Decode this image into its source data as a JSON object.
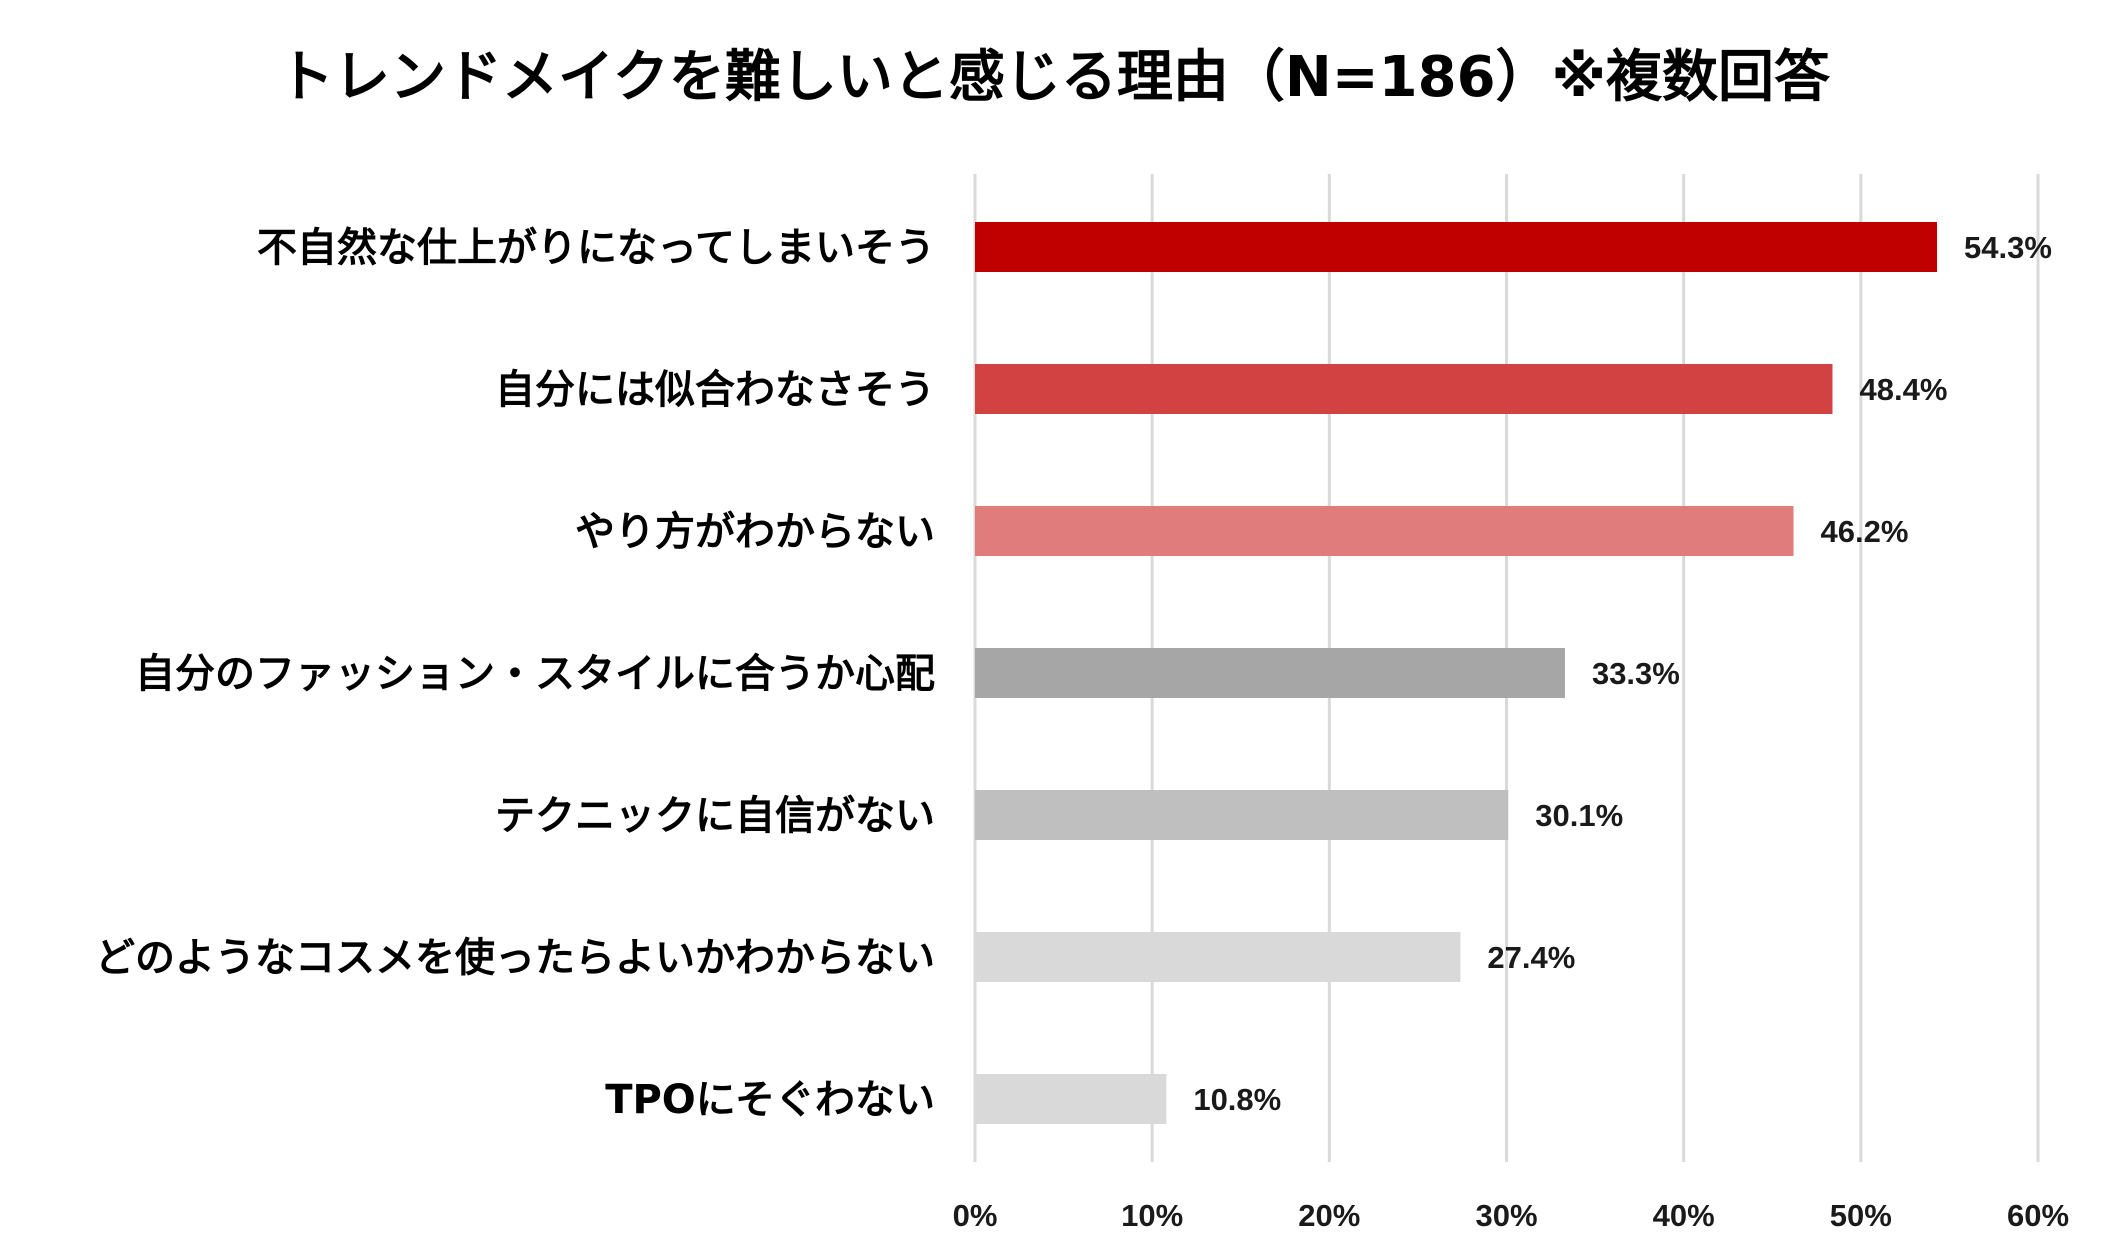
{
  "chart_data": {
    "type": "bar",
    "orientation": "horizontal",
    "title": "トレンドメイクを難しいと感じる理由（N=186）※複数回答",
    "categories": [
      "不自然な仕上がりになってしまいそう",
      "自分には似合わなさそう",
      "やり方がわからない",
      "自分のファッション・スタイルに合うか心配",
      "テクニックに自信がない",
      "どのようなコスメを使ったらよいかわからない",
      "TPOにそぐわない"
    ],
    "values": [
      54.3,
      48.4,
      46.2,
      33.3,
      30.1,
      27.4,
      10.8
    ],
    "value_labels": [
      "54.3%",
      "48.4%",
      "46.2%",
      "33.3%",
      "30.1%",
      "27.4%",
      "10.8%"
    ],
    "bar_colors": [
      "#c00000",
      "#d34242",
      "#e07c7c",
      "#a6a6a6",
      "#bfbfbf",
      "#d9d9d9",
      "#d9d9d9"
    ],
    "xlim": [
      0,
      60
    ],
    "x_ticks": [
      0,
      10,
      20,
      30,
      40,
      50,
      60
    ],
    "x_tick_labels": [
      "0%",
      "10%",
      "20%",
      "30%",
      "40%",
      "50%",
      "60%"
    ],
    "grid": "vertical",
    "legend": "none"
  }
}
